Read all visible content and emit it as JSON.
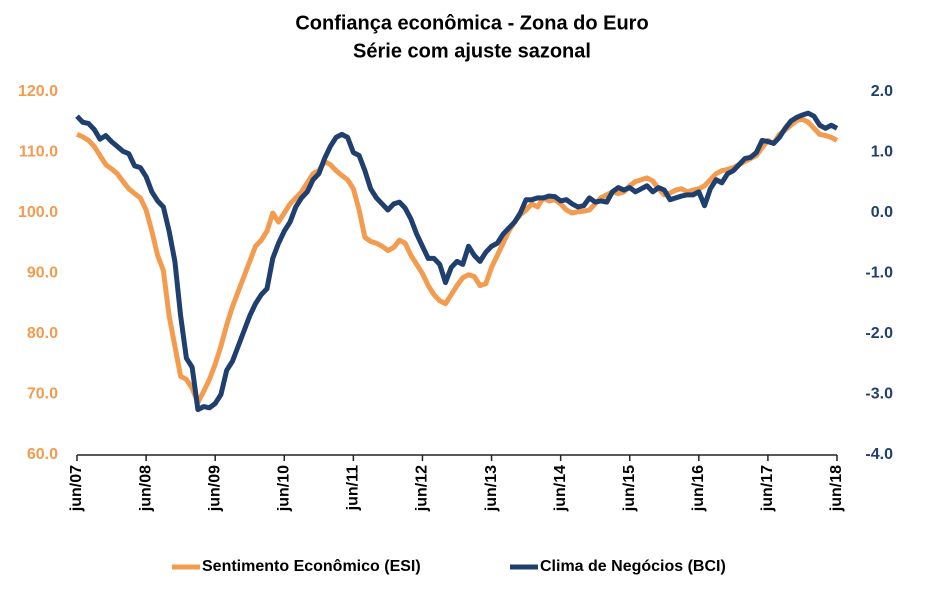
{
  "chart_data": {
    "type": "line",
    "title": "Confiança econômica - Zona do Euro",
    "subtitle": "Série com ajuste sazonal",
    "categories": [
      "jun/07",
      null,
      null,
      null,
      null,
      null,
      null,
      null,
      null,
      null,
      null,
      null,
      "jun/08",
      null,
      null,
      null,
      null,
      null,
      null,
      null,
      null,
      null,
      null,
      null,
      "jun/09",
      null,
      null,
      null,
      null,
      null,
      null,
      null,
      null,
      null,
      null,
      null,
      "jun/10",
      null,
      null,
      null,
      null,
      null,
      null,
      null,
      null,
      null,
      null,
      null,
      "jun/11",
      null,
      null,
      null,
      null,
      null,
      null,
      null,
      null,
      null,
      null,
      null,
      "jun/12",
      null,
      null,
      null,
      null,
      null,
      null,
      null,
      null,
      null,
      null,
      null,
      "jun/13",
      null,
      null,
      null,
      null,
      null,
      null,
      null,
      null,
      null,
      null,
      null,
      "jun/14",
      null,
      null,
      null,
      null,
      null,
      null,
      null,
      null,
      null,
      null,
      null,
      "jun/15",
      null,
      null,
      null,
      null,
      null,
      null,
      null,
      null,
      null,
      null,
      null,
      "jun/16",
      null,
      null,
      null,
      null,
      null,
      null,
      null,
      null,
      null,
      null,
      null,
      "jun/17",
      null,
      null,
      null,
      null,
      null,
      null,
      null,
      null,
      null,
      null,
      null,
      "jun/18"
    ],
    "series": [
      {
        "name": "Sentimento Econômico (ESI)",
        "color": "#f39c4f",
        "axis": "y",
        "values": [
          113,
          112.6,
          112,
          111,
          109.5,
          108,
          107.3,
          106.5,
          105.2,
          104,
          103.2,
          102.5,
          100.5,
          97,
          93,
          90.5,
          83,
          78,
          73,
          72.5,
          71,
          68.7,
          70.5,
          72.5,
          75,
          78,
          81.5,
          84.5,
          87,
          89.5,
          92,
          94.5,
          95.5,
          97,
          100,
          98.5,
          100,
          101.5,
          102.5,
          103.5,
          105,
          106.5,
          107,
          108.5,
          108,
          107,
          106.2,
          105.5,
          104,
          100.5,
          96,
          95.3,
          95,
          94.5,
          93.8,
          94.3,
          95.5,
          95,
          93,
          91.5,
          90,
          88,
          86.5,
          85.5,
          85,
          86.5,
          88,
          89.3,
          89.8,
          89.5,
          88,
          88.3,
          91,
          93,
          95,
          97,
          98.5,
          99.7,
          100.5,
          101.5,
          101,
          102.5,
          102,
          102.2,
          101.5,
          100.5,
          100,
          100.2,
          100.3,
          100.5,
          101.5,
          102.5,
          103,
          103.5,
          103.2,
          103.5,
          104.5,
          105.2,
          105.5,
          105.8,
          105.3,
          104,
          103,
          103.3,
          103.8,
          104,
          103.5,
          103.8,
          104,
          104.5,
          105.5,
          106.5,
          107,
          107.2,
          107.5,
          108,
          108.5,
          109,
          109.5,
          110.8,
          112,
          111.5,
          113,
          113.7,
          114.5,
          115.3,
          115.5,
          115,
          114,
          113,
          112.8,
          112.5,
          112
        ]
      },
      {
        "name": "Clima de Negócios (BCI)",
        "color": "#1f3f6e",
        "axis": "y2",
        "values": [
          1.6,
          1.5,
          1.48,
          1.38,
          1.22,
          1.28,
          1.18,
          1.1,
          1.02,
          0.98,
          0.78,
          0.75,
          0.6,
          0.35,
          0.2,
          0.1,
          -0.3,
          -0.8,
          -1.7,
          -2.4,
          -2.55,
          -3.25,
          -3.2,
          -3.22,
          -3.15,
          -3.0,
          -2.6,
          -2.45,
          -2.2,
          -1.95,
          -1.7,
          -1.5,
          -1.35,
          -1.25,
          -0.75,
          -0.5,
          -0.3,
          -0.15,
          0.1,
          0.25,
          0.35,
          0.55,
          0.65,
          0.9,
          1.1,
          1.25,
          1.3,
          1.25,
          1.0,
          0.95,
          0.7,
          0.4,
          0.25,
          0.15,
          0.05,
          0.15,
          0.18,
          0.08,
          -0.1,
          -0.35,
          -0.55,
          -0.75,
          -0.75,
          -0.85,
          -1.15,
          -0.9,
          -0.8,
          -0.85,
          -0.55,
          -0.7,
          -0.8,
          -0.65,
          -0.55,
          -0.5,
          -0.35,
          -0.25,
          -0.15,
          0.0,
          0.22,
          0.22,
          0.25,
          0.25,
          0.28,
          0.27,
          0.2,
          0.22,
          0.15,
          0.1,
          0.12,
          0.25,
          0.18,
          0.2,
          0.18,
          0.35,
          0.42,
          0.38,
          0.42,
          0.35,
          0.4,
          0.45,
          0.35,
          0.42,
          0.38,
          0.22,
          0.25,
          0.28,
          0.3,
          0.3,
          0.35,
          0.12,
          0.4,
          0.55,
          0.5,
          0.65,
          0.7,
          0.8,
          0.9,
          0.92,
          1.0,
          1.2,
          1.18,
          1.15,
          1.25,
          1.4,
          1.52,
          1.58,
          1.62,
          1.65,
          1.6,
          1.45,
          1.4,
          1.45,
          1.4
        ]
      }
    ],
    "ylim": [
      60,
      120
    ],
    "yticks": [
      {
        "value": 60,
        "label": "60.0"
      },
      {
        "value": 70,
        "label": "70.0"
      },
      {
        "value": 80,
        "label": "80.0"
      },
      {
        "value": 90,
        "label": "90.0"
      },
      {
        "value": 100,
        "label": "100.0"
      },
      {
        "value": 110,
        "label": "110.0"
      },
      {
        "value": 120,
        "label": "120.0"
      }
    ],
    "y2lim": [
      -4,
      2
    ],
    "y2ticks": [
      {
        "value": -4,
        "label": "-4.0"
      },
      {
        "value": -3,
        "label": "-3.0"
      },
      {
        "value": -2,
        "label": "-2.0"
      },
      {
        "value": -1,
        "label": "-1.0"
      },
      {
        "value": 0,
        "label": "0.0"
      },
      {
        "value": 1,
        "label": "1.0"
      },
      {
        "value": 2,
        "label": "2.0"
      }
    ],
    "grid": false,
    "legend": "bottom"
  }
}
